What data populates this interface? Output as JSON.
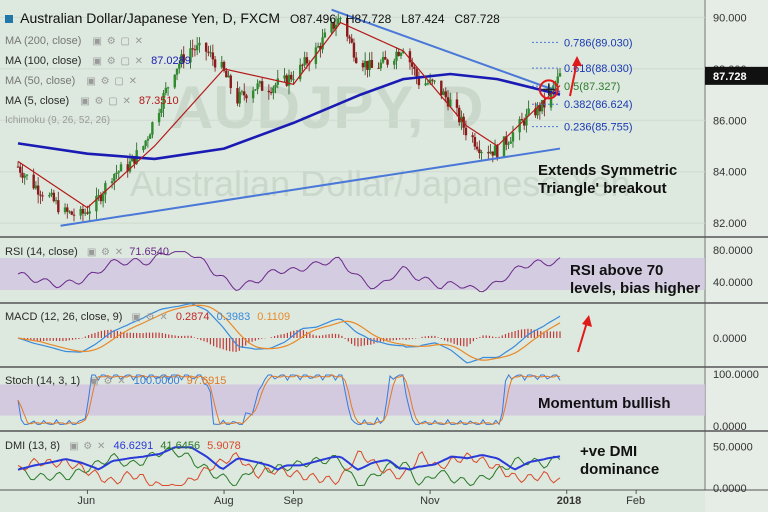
{
  "header": {
    "title": "Australian Dollar/Japanese Yen, D, FXCM",
    "open": "O87.496",
    "high": "H87.728",
    "low": "L87.424",
    "close": "C87.728"
  },
  "watermark": "AUDJPY, D",
  "watermark_sub": "Australian Dollar/Japanese Yen",
  "legend": [
    {
      "label": "MA (200, close)",
      "value": ""
    },
    {
      "label": "MA (100, close)",
      "value": "87.0289"
    },
    {
      "label": "MA (50, close)",
      "value": ""
    },
    {
      "label": "MA (5, close)",
      "value": "87.3510"
    },
    {
      "label": "Ichimoku (9, 26, 52, 26)",
      "value": ""
    }
  ],
  "price_axis": {
    "ticks": [
      "90.000",
      "88.000",
      "86.000",
      "84.000",
      "82.000"
    ],
    "current": "87.728"
  },
  "fib_levels": [
    {
      "label": "0.786(89.030)",
      "value": 89.03
    },
    {
      "label": "0.618(88.030)",
      "value": 88.03
    },
    {
      "label": "0.5(87.327)",
      "value": 87.327
    },
    {
      "label": "0.382(86.624)",
      "value": 86.624
    },
    {
      "label": "0.236(85.755)",
      "value": 85.755
    }
  ],
  "rsi": {
    "label": "RSI (14, close)",
    "value": "71.6540",
    "ticks": [
      "80.0000",
      "40.0000"
    ]
  },
  "macd": {
    "label": "MACD (12, 26, close, 9)",
    "values": [
      "0.2874",
      "0.3983",
      "0.1109"
    ],
    "ticks": [
      "0.0000"
    ]
  },
  "stoch": {
    "label": "Stoch (14, 3, 1)",
    "values": [
      "100.0000",
      "97.6915"
    ],
    "ticks": [
      "100.0000",
      "0.0000"
    ]
  },
  "dmi": {
    "label": "DMI (13, 8)",
    "values": [
      "46.6291",
      "41.6456",
      "5.9078"
    ],
    "ticks": [
      "50.0000",
      "0.0000"
    ]
  },
  "x_axis": [
    "Jun",
    "Aug",
    "Sep",
    "Nov",
    "2018",
    "Feb"
  ],
  "annotations": {
    "triangle": "Extends Symmetric Triangle' breakout",
    "rsi": "RSI above 70 levels, bias higher",
    "stoch": "Momentum bullish",
    "dmi": "+ve DMI dominance"
  },
  "colors": {
    "background": "#dde8de",
    "ma100": "#1a1ab4",
    "ma5": "#b41a1a",
    "trendline": "#4a78d8",
    "rsi_line": "#6a2a8a",
    "band": "#d2c4e0",
    "macd_line": "#3a8adc",
    "signal_line": "#e88a2a",
    "stoch_k": "#3a7ad8",
    "stoch_d": "#e07a2a",
    "dmi_plus": "#2a7a2a",
    "dmi_minus": "#d84a2a",
    "adx": "#2a3ad8",
    "arrow": "#e01a1a"
  },
  "chart_data": {
    "type": "candlestick",
    "title": "Australian Dollar/Japanese Yen, D, FXCM",
    "ylim": [
      81.5,
      90.6
    ],
    "x_labels": [
      "Jun",
      "Aug",
      "Sep",
      "Nov",
      "2018",
      "Feb"
    ],
    "close_path": [
      [
        "2017-05-01",
        84.2
      ],
      [
        "2017-05-08",
        83.5
      ],
      [
        "2017-05-15",
        83.0
      ],
      [
        "2017-05-22",
        82.4
      ],
      [
        "2017-05-29",
        82.3
      ],
      [
        "2017-06-05",
        82.8
      ],
      [
        "2017-06-12",
        83.9
      ],
      [
        "2017-06-19",
        84.2
      ],
      [
        "2017-06-26",
        85.0
      ],
      [
        "2017-07-03",
        86.5
      ],
      [
        "2017-07-10",
        88.0
      ],
      [
        "2017-07-17",
        88.8
      ],
      [
        "2017-07-24",
        88.7
      ],
      [
        "2017-07-31",
        88.0
      ],
      [
        "2017-08-07",
        86.8
      ],
      [
        "2017-08-14",
        87.3
      ],
      [
        "2017-08-21",
        87.3
      ],
      [
        "2017-08-28",
        87.5
      ],
      [
        "2017-09-04",
        88.0
      ],
      [
        "2017-09-11",
        88.7
      ],
      [
        "2017-09-18",
        89.6
      ],
      [
        "2017-09-22",
        90.0
      ],
      [
        "2017-09-29",
        88.5
      ],
      [
        "2017-10-06",
        88.0
      ],
      [
        "2017-10-13",
        88.3
      ],
      [
        "2017-10-20",
        88.9
      ],
      [
        "2017-10-27",
        87.5
      ],
      [
        "2017-11-03",
        87.4
      ],
      [
        "2017-11-10",
        86.7
      ],
      [
        "2017-11-17",
        85.6
      ],
      [
        "2017-11-24",
        84.9
      ],
      [
        "2017-12-01",
        84.8
      ],
      [
        "2017-12-08",
        85.5
      ],
      [
        "2017-12-15",
        86.2
      ],
      [
        "2017-12-22",
        86.6
      ],
      [
        "2017-12-29",
        87.728
      ]
    ],
    "series": [
      {
        "name": "MA (100, close)",
        "points": [
          [
            "2017-05-01",
            85.1
          ],
          [
            "2017-06-01",
            84.7
          ],
          [
            "2017-07-01",
            84.5
          ],
          [
            "2017-08-01",
            84.9
          ],
          [
            "2017-09-01",
            85.9
          ],
          [
            "2017-10-01",
            87.0
          ],
          [
            "2017-10-20",
            87.6
          ],
          [
            "2017-11-10",
            87.8
          ],
          [
            "2017-12-01",
            87.6
          ],
          [
            "2017-12-29",
            87.0
          ]
        ]
      },
      {
        "name": "MA (5, close)",
        "points": [
          [
            "2017-05-01",
            84.4
          ],
          [
            "2017-06-01",
            82.6
          ],
          [
            "2017-07-01",
            85.0
          ],
          [
            "2017-08-01",
            88.0
          ],
          [
            "2017-09-01",
            87.4
          ],
          [
            "2017-09-22",
            89.8
          ],
          [
            "2017-10-20",
            88.7
          ],
          [
            "2017-11-17",
            85.8
          ],
          [
            "2017-12-01",
            85.0
          ],
          [
            "2017-12-29",
            87.351
          ]
        ]
      }
    ],
    "trendlines": [
      {
        "label": "upper",
        "from": [
          "2017-09-18",
          90.3
        ],
        "to": [
          "2017-12-29",
          87.1
        ]
      },
      {
        "label": "lower",
        "from": [
          "2017-05-20",
          81.9
        ],
        "to": [
          "2017-12-29",
          84.9
        ]
      }
    ],
    "fib_levels": [
      89.03,
      88.03,
      87.327,
      86.624,
      85.755
    ],
    "annotations": [
      "Extends Symmetric Triangle' breakout",
      "RSI above 70 levels, bias higher",
      "Momentum bullish",
      "+ve DMI dominance"
    ]
  }
}
